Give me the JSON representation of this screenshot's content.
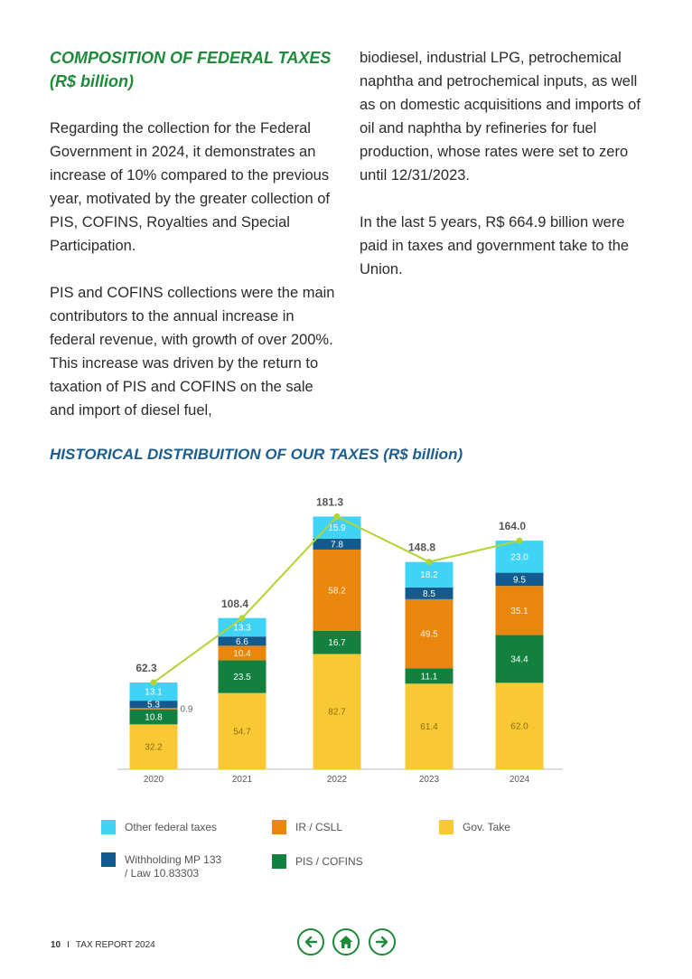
{
  "section1": {
    "title_line1": "COMPOSITION OF FEDERAL TAXES",
    "title_line2": "(R$ billion)"
  },
  "left_column": {
    "p1": "Regarding the collection for the Federal Government in 2024, it demonstrates an increase of 10% compared to the previous year, motivated by the greater collection of PIS, COFINS, Royalties and Special Participation.",
    "p2": "PIS and COFINS collections were the main contributors to the annual increase in federal revenue, with growth of over 200%. This increase was driven by the return to taxation of PIS and COFINS on the sale and import of diesel fuel,"
  },
  "right_column": {
    "p1": "biodiesel, industrial LPG, petrochemical naphtha and petrochemical inputs, as well as on domestic acquisitions and imports of oil and naphtha by refineries for fuel production, whose rates were set to zero until 12/31/2023.",
    "p2": "In the last 5 years, R$ 664.9 billion were paid in taxes and government take to the Union."
  },
  "chart_title": "HISTORICAL DISTRIBUITION OF OUR TAXES (R$ billion)",
  "chart_data": {
    "type": "bar",
    "stacked": true,
    "title": "HISTORICAL DISTRIBUITION OF OUR TAXES (R$ billion)",
    "categories": [
      "2020",
      "2021",
      "2022",
      "2023",
      "2024"
    ],
    "series": [
      {
        "name": "Gov. Take",
        "color": "#f9c935",
        "values": [
          32.2,
          54.7,
          82.7,
          61.4,
          62.0
        ],
        "labels": [
          "32.2",
          "54.7",
          "82.7",
          "61.4",
          "62.0"
        ]
      },
      {
        "name": "PIS / COFINS",
        "color": "#13803f",
        "values": [
          10.8,
          23.5,
          16.7,
          11.1,
          34.4
        ],
        "labels": [
          "10.8",
          "23.5",
          "16.7",
          "11.1",
          "34.4"
        ]
      },
      {
        "name": "IR / CSLL",
        "color": "#e8860e",
        "values": [
          0.9,
          10.4,
          58.2,
          49.5,
          35.1
        ],
        "labels": [
          "0.9",
          "10.4",
          "58.2",
          "49.5",
          "35.1"
        ]
      },
      {
        "name": "Withholding MP 133 / Law 10.83303",
        "color": "#135b8e",
        "values": [
          5.3,
          6.6,
          7.8,
          8.5,
          9.5
        ],
        "labels": [
          "5.3",
          "6.6",
          "7.8",
          "8.5",
          "9.5"
        ]
      },
      {
        "name": "Other federal taxes",
        "color": "#3fd3f5",
        "values": [
          13.1,
          13.3,
          15.9,
          18.2,
          23.0
        ],
        "labels": [
          "13.1",
          "13.3",
          "15.9",
          "18.2",
          "23.0"
        ]
      }
    ],
    "totals": [
      62.3,
      108.4,
      181.3,
      148.8,
      164.0
    ],
    "total_labels": [
      "62.3",
      "108.4",
      "181.3",
      "148.8",
      "164.0"
    ],
    "total_line_color": "#b5d334",
    "ylim": [
      0,
      190
    ],
    "xlabel": "",
    "ylabel": "",
    "grid": false,
    "legend_position": "bottom"
  },
  "legend": [
    {
      "label": "Other federal taxes",
      "color": "#3fd3f5"
    },
    {
      "label": "IR / CSLL",
      "color": "#e8860e"
    },
    {
      "label": "Gov. Take",
      "color": "#f9c935"
    },
    {
      "label": "Withholding MP 133",
      "label2": "/ Law 10.83303",
      "color": "#135b8e"
    },
    {
      "label": "PIS / COFINS",
      "color": "#13803f"
    }
  ],
  "footer": {
    "page_number": "10",
    "separator": "I",
    "report_name": "TAX REPORT 2024"
  },
  "nav": {
    "back_icon": "arrow-left-icon",
    "home_icon": "home-icon",
    "next_icon": "arrow-right-icon",
    "color": "#1f8a3a"
  }
}
